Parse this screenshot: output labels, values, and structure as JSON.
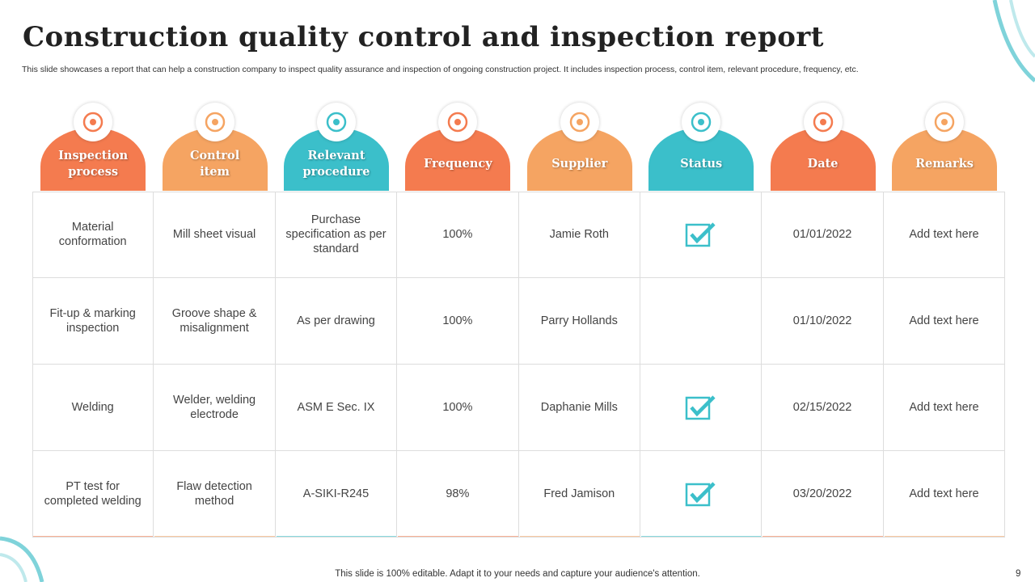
{
  "header": {
    "title": "Construction quality control and inspection report",
    "subtitle": "This slide showcases a report that can help a construction company to inspect quality assurance and inspection of ongoing construction project. It includes inspection process, control item, relevant procedure, frequency, etc."
  },
  "table": {
    "columns": [
      {
        "label": "Inspection process",
        "color": "#f47b4f"
      },
      {
        "label": "Control item",
        "color": "#f5a462"
      },
      {
        "label": "Relevant procedure",
        "color": "#3bbfca"
      },
      {
        "label": "Frequency",
        "color": "#f47b4f"
      },
      {
        "label": "Supplier",
        "color": "#f5a462"
      },
      {
        "label": "Status",
        "color": "#3bbfca"
      },
      {
        "label": "Date",
        "color": "#f47b4f"
      },
      {
        "label": "Remarks",
        "color": "#f5a462"
      }
    ],
    "rows": [
      [
        "Material conformation",
        "Mill sheet visual",
        "Purchase specification as per standard",
        "100%",
        "Jamie Roth",
        true,
        "01/01/2022",
        "Add text here"
      ],
      [
        "Fit-up & marking inspection",
        "Groove shape & misalignment",
        "As per drawing",
        "100%",
        "Parry Hollands",
        false,
        "01/10/2022",
        "Add text here"
      ],
      [
        "Welding",
        "Welder, welding electrode",
        "ASM  E Sec. IX",
        "100%",
        "Daphanie Mills",
        true,
        "02/15/2022",
        "Add text here"
      ],
      [
        "PT test for completed welding",
        "Flaw detection method",
        "A-SIKI-R245",
        "98%",
        "Fred Jamison",
        true,
        "03/20/2022",
        "Add text here"
      ]
    ]
  },
  "footer": {
    "note": "This slide is 100% editable. Adapt it to your needs and capture your audience's attention.",
    "page": "9"
  }
}
